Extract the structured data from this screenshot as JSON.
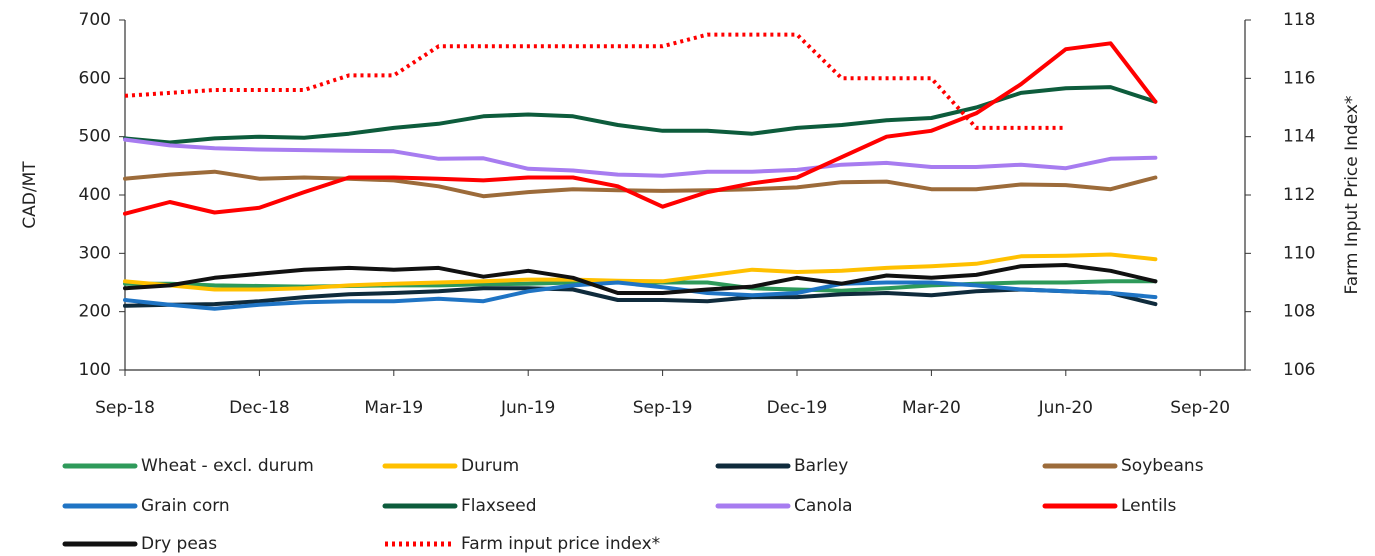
{
  "chart_data": {
    "type": "line",
    "y_label": "CAD/MT",
    "y2_label": "Farm Input Price Index*",
    "categories": [
      "Sep-18",
      null,
      null,
      "Dec-18",
      null,
      null,
      "Mar-19",
      null,
      null,
      "Jun-19",
      null,
      null,
      "Sep-19",
      null,
      null,
      "Dec-19",
      null,
      null,
      "Mar-20",
      null,
      null,
      "Jun-20",
      null,
      null,
      "Sep-20"
    ],
    "ylim": [
      100,
      700
    ],
    "yticks": [
      100,
      200,
      300,
      400,
      500,
      600,
      700
    ],
    "y2lim": [
      106,
      118
    ],
    "y2ticks": [
      106,
      108,
      110,
      112,
      114,
      116,
      118
    ],
    "legend": "bottom",
    "series": [
      {
        "name": "Wheat - excl. durum",
        "color": "#2e9a5a",
        "values": [
          248,
          248,
          245,
          244,
          243,
          244,
          245,
          245,
          247,
          248,
          250,
          250,
          250,
          250,
          240,
          238,
          236,
          240,
          245,
          248,
          250,
          250,
          252,
          252,
          null
        ]
      },
      {
        "name": "Durum",
        "color": "#ffc000",
        "values": [
          252,
          245,
          238,
          238,
          240,
          245,
          248,
          250,
          252,
          255,
          255,
          253,
          252,
          262,
          272,
          268,
          270,
          275,
          278,
          282,
          295,
          296,
          298,
          290,
          null
        ]
      },
      {
        "name": "Barley",
        "color": "#0f2b3c",
        "values": [
          210,
          212,
          213,
          218,
          225,
          230,
          232,
          235,
          240,
          240,
          238,
          220,
          220,
          218,
          225,
          225,
          230,
          232,
          228,
          235,
          238,
          235,
          232,
          213,
          null
        ]
      },
      {
        "name": "Soybeans",
        "color": "#9c6b3a",
        "values": [
          428,
          435,
          440,
          428,
          430,
          428,
          425,
          415,
          398,
          405,
          410,
          408,
          407,
          408,
          410,
          413,
          422,
          423,
          410,
          410,
          418,
          417,
          410,
          430,
          null
        ]
      },
      {
        "name": "Grain corn",
        "color": "#1f74c4",
        "values": [
          220,
          212,
          205,
          212,
          216,
          218,
          218,
          222,
          218,
          235,
          245,
          250,
          242,
          232,
          228,
          232,
          248,
          250,
          250,
          245,
          238,
          235,
          232,
          225,
          null
        ]
      },
      {
        "name": "Flaxseed",
        "color": "#0d5c3c",
        "values": [
          497,
          490,
          497,
          500,
          498,
          505,
          515,
          522,
          535,
          538,
          535,
          520,
          510,
          510,
          505,
          515,
          520,
          528,
          532,
          550,
          575,
          583,
          585,
          560,
          null
        ]
      },
      {
        "name": "Canola",
        "color": "#a77cf0",
        "values": [
          495,
          485,
          480,
          478,
          477,
          476,
          475,
          462,
          463,
          445,
          442,
          435,
          433,
          440,
          440,
          443,
          452,
          455,
          448,
          448,
          452,
          446,
          462,
          464,
          null
        ]
      },
      {
        "name": "Lentils",
        "color": "#ff0000",
        "values": [
          368,
          388,
          370,
          378,
          405,
          430,
          430,
          428,
          425,
          430,
          430,
          415,
          380,
          405,
          420,
          430,
          465,
          500,
          510,
          540,
          590,
          650,
          660,
          560,
          null
        ]
      },
      {
        "name": "Dry peas",
        "color": "#111111",
        "values": [
          240,
          245,
          258,
          265,
          272,
          275,
          272,
          275,
          260,
          270,
          258,
          232,
          232,
          238,
          243,
          258,
          248,
          262,
          258,
          263,
          278,
          280,
          270,
          252,
          null
        ]
      },
      {
        "name": "Farm input price index*",
        "color": "#ff0000",
        "style": "dotted",
        "axis": "y2",
        "values": [
          115.4,
          115.5,
          115.6,
          115.6,
          115.6,
          116.1,
          116.1,
          117.1,
          117.1,
          117.1,
          117.1,
          117.1,
          117.1,
          117.5,
          117.5,
          117.5,
          116.0,
          116.0,
          116.0,
          114.3,
          114.3,
          114.3,
          null,
          null,
          null
        ]
      }
    ]
  }
}
